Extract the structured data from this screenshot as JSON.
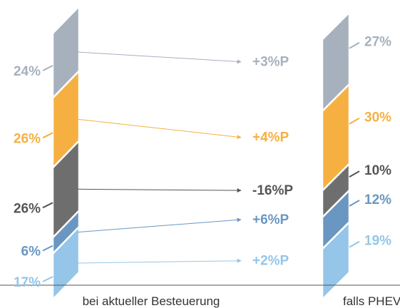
{
  "chart_data": {
    "type": "bar",
    "stacked": true,
    "categories": [
      "bei aktueller Besteuerung",
      "falls PHEV"
    ],
    "series": [
      {
        "values": [
          17,
          19
        ],
        "color": "#95c5e8",
        "value_labels": [
          "17%",
          "19%"
        ]
      },
      {
        "values": [
          6,
          12
        ],
        "color": "#6a96c2",
        "value_labels": [
          "6%",
          "12%"
        ]
      },
      {
        "values": [
          26,
          10
        ],
        "color": "#6e6e6e",
        "value_labels": [
          "26%",
          "10%"
        ]
      },
      {
        "values": [
          26,
          30
        ],
        "color": "#f6b042",
        "value_labels": [
          "26%",
          "30%"
        ]
      },
      {
        "values": [
          24,
          27
        ],
        "color": "#a6b1bd",
        "value_labels": [
          "24%",
          "27%"
        ]
      }
    ],
    "changes": [
      "+2%P",
      "+6%P",
      "-16%P",
      "+4%P",
      "+3%P"
    ],
    "change_colors": [
      "#95c5e8",
      "#6a96c2",
      "#555555",
      "#f6b042",
      "#a6b1bd"
    ],
    "ylim": [
      0,
      100
    ]
  }
}
